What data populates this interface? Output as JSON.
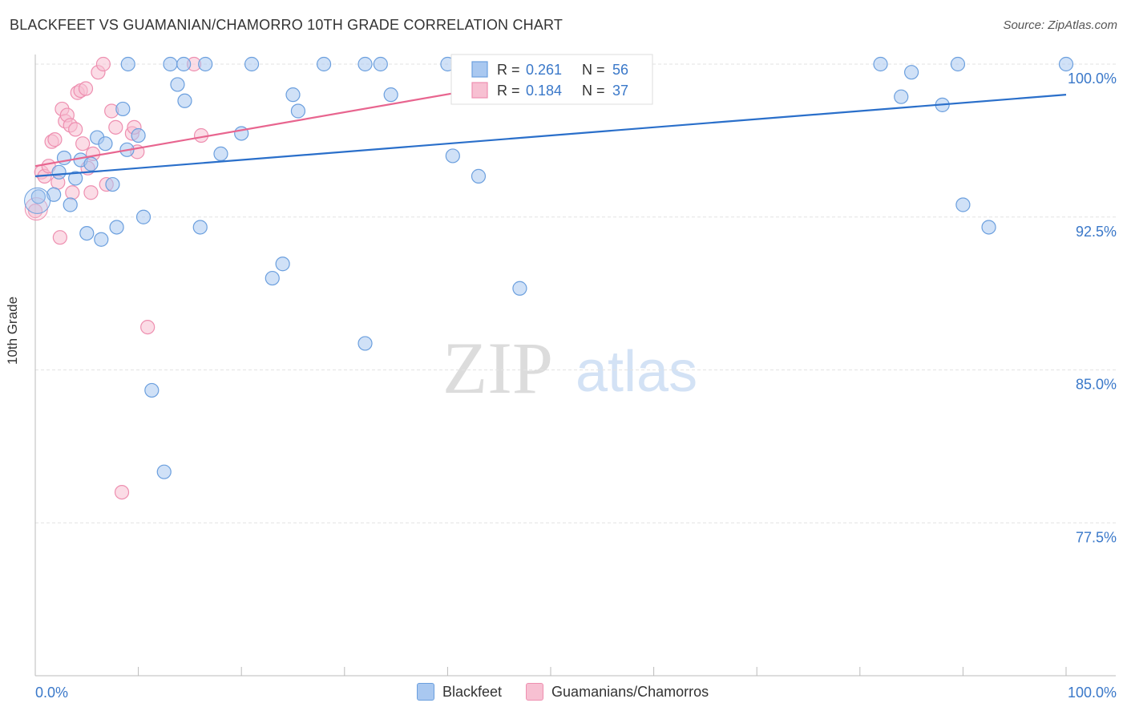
{
  "header": {
    "title": "BLACKFEET VS GUAMANIAN/CHAMORRO 10TH GRADE CORRELATION CHART",
    "source": "Source: ZipAtlas.com"
  },
  "watermark": {
    "zip": "ZIP",
    "atlas": "atlas"
  },
  "colors": {
    "blackfeet_fill": "#a9c8f0",
    "blackfeet_stroke": "#6b9fde",
    "blackfeet_line": "#2a6fca",
    "guam_fill": "#f7c0d2",
    "guam_stroke": "#ee8fb0",
    "guam_line": "#e8658f",
    "value_blue": "#3a78c9"
  },
  "legend_top": {
    "rows": [
      {
        "r_label": "R = ",
        "r_value": "0.261",
        "n_label": "N = ",
        "n_value": "56"
      },
      {
        "r_label": "R = ",
        "r_value": "0.184",
        "n_label": "N = ",
        "n_value": "37"
      }
    ]
  },
  "legend_bottom": {
    "items": [
      {
        "label": "Blackfeet"
      },
      {
        "label": "Guamanians/Chamorros"
      }
    ]
  },
  "chart_data": {
    "type": "scatter",
    "title": "BLACKFEET VS GUAMANIAN/CHAMORRO 10TH GRADE CORRELATION CHART",
    "xlabel": "",
    "ylabel": "10th Grade",
    "xlim": [
      0,
      100
    ],
    "ylim": [
      70.0,
      100.5
    ],
    "x_tick_labels": [
      "0.0%",
      "100.0%"
    ],
    "y_ticks": [
      77.5,
      85.0,
      92.5,
      100.0
    ],
    "y_tick_labels": [
      "77.5%",
      "85.0%",
      "92.5%",
      "100.0%"
    ],
    "grid": true,
    "series": [
      {
        "name": "Blackfeet",
        "trend": {
          "x": [
            0,
            100
          ],
          "y": [
            94.5,
            98.5
          ]
        },
        "points": [
          [
            0.3,
            93.5
          ],
          [
            1.8,
            93.6
          ],
          [
            2.3,
            94.7
          ],
          [
            2.8,
            95.4
          ],
          [
            3.4,
            93.1
          ],
          [
            3.9,
            94.4
          ],
          [
            4.4,
            95.3
          ],
          [
            5.0,
            91.7
          ],
          [
            5.4,
            95.1
          ],
          [
            6.0,
            96.4
          ],
          [
            6.4,
            91.4
          ],
          [
            6.8,
            96.1
          ],
          [
            7.5,
            94.1
          ],
          [
            7.9,
            92.0
          ],
          [
            8.5,
            97.8
          ],
          [
            8.9,
            95.8
          ],
          [
            9.0,
            100.0
          ],
          [
            10.0,
            96.5
          ],
          [
            10.5,
            92.5
          ],
          [
            11.3,
            84.0
          ],
          [
            12.5,
            80.0
          ],
          [
            13.1,
            100.0
          ],
          [
            13.8,
            99.0
          ],
          [
            14.5,
            98.2
          ],
          [
            14.4,
            100.0
          ],
          [
            16.0,
            92.0
          ],
          [
            16.5,
            100.0
          ],
          [
            18.0,
            95.6
          ],
          [
            20.0,
            96.6
          ],
          [
            21.0,
            100.0
          ],
          [
            23.0,
            89.5
          ],
          [
            24.0,
            90.2
          ],
          [
            25.0,
            98.5
          ],
          [
            25.5,
            97.7
          ],
          [
            28.0,
            100.0
          ],
          [
            32.0,
            86.3
          ],
          [
            32.0,
            100.0
          ],
          [
            33.5,
            100.0
          ],
          [
            34.5,
            98.5
          ],
          [
            40.0,
            100.0
          ],
          [
            40.5,
            95.5
          ],
          [
            43.0,
            94.5
          ],
          [
            47.0,
            89.0
          ],
          [
            82.0,
            100.0
          ],
          [
            84.0,
            98.4
          ],
          [
            85.0,
            99.6
          ],
          [
            88.0,
            98.0
          ],
          [
            89.5,
            100.0
          ],
          [
            90.0,
            93.1
          ],
          [
            92.5,
            92.0
          ],
          [
            100.0,
            100.0
          ]
        ]
      },
      {
        "name": "Guamanians/Chamorros",
        "trend": {
          "x": [
            0,
            50
          ],
          "y": [
            95.0,
            99.4
          ]
        },
        "points": [
          [
            0.0,
            92.8
          ],
          [
            0.6,
            94.7
          ],
          [
            0.9,
            94.5
          ],
          [
            1.3,
            95.0
          ],
          [
            1.6,
            96.2
          ],
          [
            1.9,
            96.3
          ],
          [
            2.2,
            94.2
          ],
          [
            2.4,
            91.5
          ],
          [
            2.6,
            97.8
          ],
          [
            2.9,
            97.2
          ],
          [
            3.1,
            97.5
          ],
          [
            3.4,
            97.0
          ],
          [
            3.6,
            93.7
          ],
          [
            3.9,
            96.8
          ],
          [
            4.1,
            98.6
          ],
          [
            4.4,
            98.7
          ],
          [
            4.6,
            96.1
          ],
          [
            4.9,
            98.8
          ],
          [
            5.1,
            94.9
          ],
          [
            5.4,
            93.7
          ],
          [
            5.6,
            95.6
          ],
          [
            6.1,
            99.6
          ],
          [
            6.6,
            100.0
          ],
          [
            6.9,
            94.1
          ],
          [
            7.4,
            97.7
          ],
          [
            7.8,
            96.9
          ],
          [
            8.4,
            79.0
          ],
          [
            9.4,
            96.6
          ],
          [
            9.6,
            96.9
          ],
          [
            9.9,
            95.7
          ],
          [
            10.9,
            87.1
          ],
          [
            15.4,
            100.0
          ],
          [
            16.1,
            96.5
          ]
        ]
      }
    ]
  }
}
